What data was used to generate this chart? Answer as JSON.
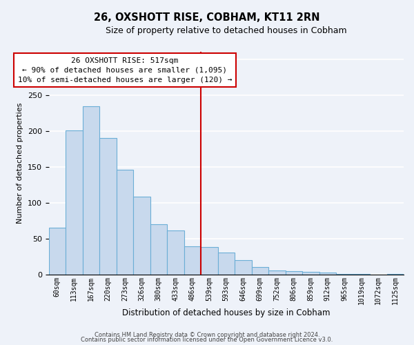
{
  "title": "26, OXSHOTT RISE, COBHAM, KT11 2RN",
  "subtitle": "Size of property relative to detached houses in Cobham",
  "xlabel": "Distribution of detached houses by size in Cobham",
  "ylabel": "Number of detached properties",
  "bar_labels": [
    "60sqm",
    "113sqm",
    "167sqm",
    "220sqm",
    "273sqm",
    "326sqm",
    "380sqm",
    "433sqm",
    "486sqm",
    "539sqm",
    "593sqm",
    "646sqm",
    "699sqm",
    "752sqm",
    "806sqm",
    "859sqm",
    "912sqm",
    "965sqm",
    "1019sqm",
    "1072sqm",
    "1125sqm"
  ],
  "bar_values": [
    65,
    201,
    234,
    190,
    146,
    108,
    70,
    61,
    39,
    38,
    30,
    20,
    10,
    5,
    4,
    3,
    2,
    1,
    1,
    0,
    1
  ],
  "bar_color": "#c8d9ed",
  "bar_edge_color": "#6baed6",
  "vline_x": 8.5,
  "vline_color": "#cc0000",
  "annotation_title": "26 OXSHOTT RISE: 517sqm",
  "annotation_line1": "← 90% of detached houses are smaller (1,095)",
  "annotation_line2": "10% of semi-detached houses are larger (120) →",
  "annotation_box_color": "#ffffff",
  "annotation_box_edge": "#cc0000",
  "ylim": [
    0,
    310
  ],
  "footnote1": "Contains HM Land Registry data © Crown copyright and database right 2024.",
  "footnote2": "Contains public sector information licensed under the Open Government Licence v3.0.",
  "background_color": "#eef2f9"
}
